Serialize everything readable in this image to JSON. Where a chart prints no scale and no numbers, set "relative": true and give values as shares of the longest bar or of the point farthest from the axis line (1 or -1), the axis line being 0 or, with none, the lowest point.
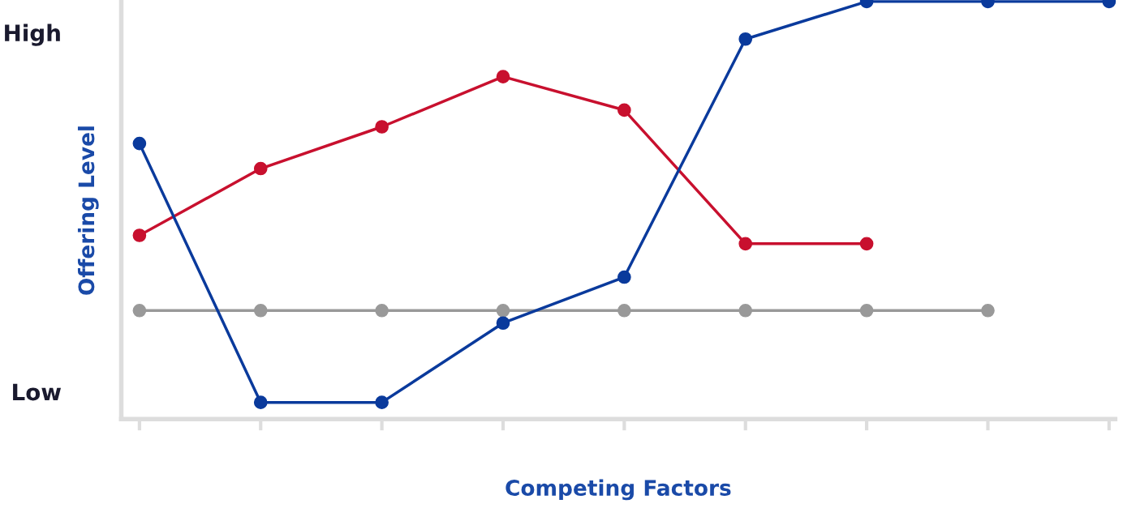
{
  "chart_data": {
    "type": "line",
    "xlabel": "Competing Factors",
    "ylabel": "Offering Level",
    "relative": true,
    "annotations": [
      "High",
      "Low"
    ],
    "categories": [
      null,
      null,
      null,
      null,
      null,
      null,
      null,
      null,
      null
    ],
    "series": [
      {
        "color": "#c8102e",
        "values": [
          0.44,
          0.6,
          0.7,
          0.82,
          0.74,
          0.42,
          0.42,
          null,
          null
        ]
      },
      {
        "color": "#999999",
        "values": [
          0.26,
          0.26,
          0.26,
          0.26,
          0.26,
          0.26,
          0.26,
          0.26,
          null
        ]
      },
      {
        "color": "#0a3a9c",
        "values": [
          0.66,
          0.04,
          0.04,
          0.23,
          0.34,
          0.91,
          1,
          1,
          1
        ]
      }
    ],
    "marker": "circle",
    "line_style": "solid",
    "grid": false,
    "legend": false
  }
}
